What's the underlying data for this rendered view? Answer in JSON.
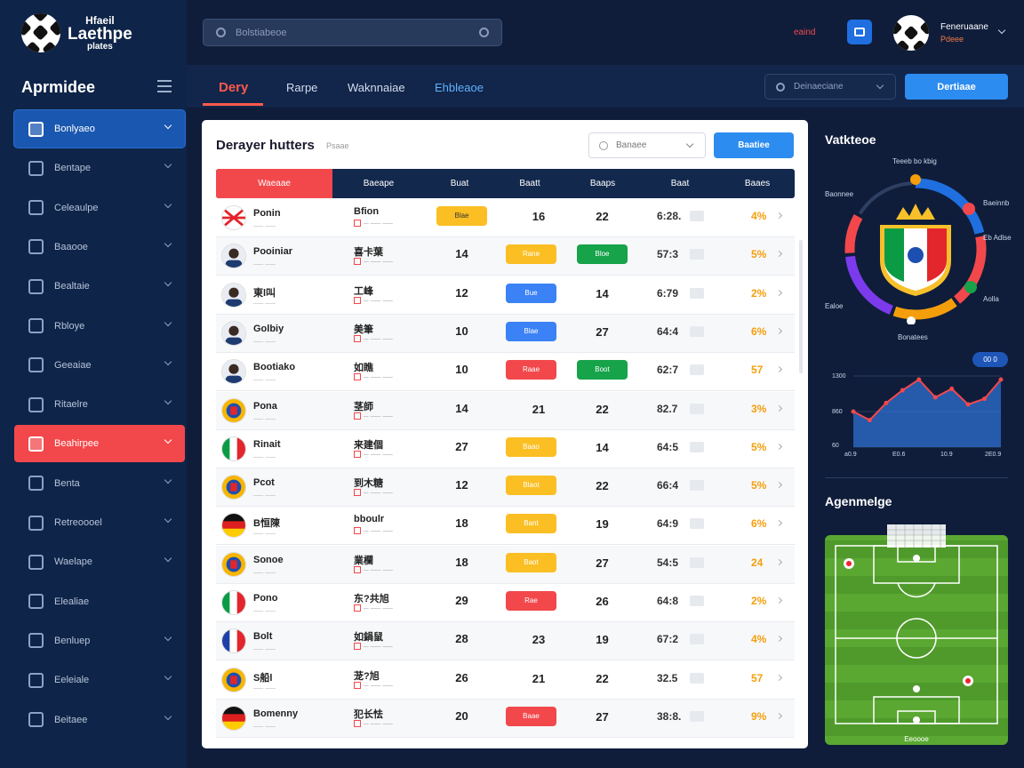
{
  "brand": {
    "line1": "Hfaeil",
    "line2": "Laethpe",
    "line3": "plates"
  },
  "sidebar": {
    "title": "Aprmidee",
    "items": [
      {
        "label": "Bonlyaeo",
        "state": "active"
      },
      {
        "label": "Bentape",
        "state": "normal"
      },
      {
        "label": "Celeaulpe",
        "state": "normal"
      },
      {
        "label": "Baaooe",
        "state": "normal"
      },
      {
        "label": "Bealtaie",
        "state": "normal"
      },
      {
        "label": "Rbloye",
        "state": "normal"
      },
      {
        "label": "Geeaiae",
        "state": "normal"
      },
      {
        "label": "Ritaelre",
        "state": "normal"
      },
      {
        "label": "Beahirpee",
        "state": "alert"
      },
      {
        "label": "Benta",
        "state": "normal"
      },
      {
        "label": "Retreoooel",
        "state": "normal"
      },
      {
        "label": "Waelape",
        "state": "normal"
      },
      {
        "label": "Elealiae",
        "state": "normal"
      },
      {
        "label": "Benluep",
        "state": "normal"
      },
      {
        "label": "Eeleiale",
        "state": "normal"
      },
      {
        "label": "Beitaee",
        "state": "normal"
      }
    ]
  },
  "header": {
    "search_placeholder": "Bolstiabeoe",
    "live_tag": "eaind",
    "user_name": "Feneruaane",
    "user_sub": "Pdeee"
  },
  "tabs": {
    "items": [
      "Dery",
      "Rarpe",
      "Waknnaiae",
      "Ehbleaoe"
    ],
    "filter_label": "Deinaeciane",
    "action_label": "Dertiaae"
  },
  "panel": {
    "title": "Derayer hutters",
    "subtitle": "Psaae",
    "select_label": "Banaee",
    "button_label": "Baatiee",
    "columns": [
      "Waeaae",
      "Baeape",
      "Buat",
      "Baatt",
      "Baaps",
      "Baat",
      "Baaes"
    ],
    "rows": [
      {
        "name": "Ponin",
        "club": "Bfion",
        "c3": {
          "type": "tag",
          "color": "#fbbf24",
          "text": "Blae"
        },
        "c4": "16",
        "c6": "22",
        "c7": "6:28.",
        "c8": "4%",
        "flag": "cross"
      },
      {
        "name": "Pooiniar",
        "club": "喜卡葉",
        "c3": {
          "type": "num",
          "text": "14"
        },
        "c4": "",
        "c5": {
          "color": "#fbbf24",
          "text": "Rane"
        },
        "c6col": {
          "color": "#16a34a",
          "text": "Bloe"
        },
        "c7": "57:3",
        "c8": "5%",
        "flag": "person"
      },
      {
        "name": "東l叫",
        "club": "工峰",
        "c3": {
          "type": "num",
          "text": "12"
        },
        "c5": {
          "color": "#3b82f6",
          "text": "Bue"
        },
        "c6": "14",
        "c7": "6:79",
        "c8": "2%",
        "flag": "person"
      },
      {
        "name": "Golbiy",
        "club": "美筆",
        "c3": {
          "type": "num",
          "text": "10"
        },
        "c5": {
          "color": "#3b82f6",
          "text": "Blae"
        },
        "c6": "27",
        "c7": "64:4",
        "c8": "6%",
        "flag": "person"
      },
      {
        "name": "Bootiako",
        "club": "如瞧",
        "c3": {
          "type": "num",
          "text": "10"
        },
        "c5": {
          "color": "#f2484b",
          "text": "Raae"
        },
        "c6col": {
          "color": "#16a34a",
          "text": "Boot"
        },
        "c7": "62:7",
        "c8": "57",
        "flag": "person"
      },
      {
        "name": "Pona",
        "club": "茎師",
        "c3": {
          "type": "num",
          "text": "14"
        },
        "c4": "21",
        "c6": "22",
        "c7": "82.7",
        "c8": "3%",
        "flag": "crest"
      },
      {
        "name": "Rinait",
        "club": "来建個",
        "c3": {
          "type": "num",
          "text": "27"
        },
        "c5": {
          "color": "#fbbf24",
          "text": "Baao"
        },
        "c6": "14",
        "c7": "64:5",
        "c8": "5%",
        "flag": "italy"
      },
      {
        "name": "Pcot",
        "club": "到木糖",
        "c3": {
          "type": "num",
          "text": "12"
        },
        "c5": {
          "color": "#fbbf24",
          "text": "Blaot"
        },
        "c6": "22",
        "c7": "66:4",
        "c8": "5%",
        "flag": "crest"
      },
      {
        "name": "B恒陳",
        "club": "bboulr",
        "c3": {
          "type": "num",
          "text": "18"
        },
        "c5": {
          "color": "#fbbf24",
          "text": "Bant"
        },
        "c6": "19",
        "c7": "64:9",
        "c8": "6%",
        "flag": "germany"
      },
      {
        "name": "Sonoe",
        "club": "業欄",
        "c3": {
          "type": "num",
          "text": "18"
        },
        "c5": {
          "color": "#fbbf24",
          "text": "Baot"
        },
        "c6": "27",
        "c7": "54:5",
        "c8": "24",
        "flag": "crest"
      },
      {
        "name": "Pono",
        "club": "东?共旭",
        "c3": {
          "type": "num",
          "text": "29"
        },
        "c5": {
          "color": "#f2484b",
          "text": "Rae"
        },
        "c6": "26",
        "c7": "64:8",
        "c8": "2%",
        "flag": "italy"
      },
      {
        "name": "Bolt",
        "club": "如鍋鼠",
        "c3": {
          "type": "num",
          "text": "28"
        },
        "c4": "23",
        "c6": "19",
        "c7": "67:2",
        "c8": "4%",
        "flag": "france"
      },
      {
        "name": "S船l",
        "club": "茏?旭",
        "c3": {
          "type": "num",
          "text": "26"
        },
        "c4": "21",
        "c6": "22",
        "c7": "32.5",
        "c8": "57",
        "flag": "crest"
      },
      {
        "name": "Bomenny",
        "club": "犯长怯",
        "c3": {
          "type": "num",
          "text": "20"
        },
        "c5": {
          "color": "#f2484b",
          "text": "Baae"
        },
        "c6": "27",
        "c7": "38:8.",
        "c8": "9%",
        "flag": "germany"
      }
    ]
  },
  "right": {
    "title": "Vatkteoe",
    "ring_caption": "Teeeb bo kbig",
    "ring_labels": [
      "Baonnee",
      "Baeinnb",
      "Ealoe",
      "Eb Adlse",
      "Aolla",
      "Bonatees"
    ],
    "ring_segments": [
      {
        "color": "#1f6fe0",
        "value": 22
      },
      {
        "color": "#f2484b",
        "value": 18
      },
      {
        "color": "#f59e0b",
        "value": 16
      },
      {
        "color": "#7c3aed",
        "value": 18
      },
      {
        "color": "#f2484b",
        "value": 10
      },
      {
        "color": "#2e3f62",
        "value": 16
      }
    ],
    "badge": "00 0",
    "line": {
      "ylabels": [
        "1300",
        "860",
        "60"
      ],
      "xlabels": [
        "a0.9",
        "E0.6",
        "10.9",
        "2E0.9"
      ],
      "values": [
        50,
        38,
        62,
        80,
        95,
        70,
        82,
        60,
        68,
        95
      ]
    },
    "pitch_title": "Agenmelge",
    "pitch_caption": "Eeoooe"
  }
}
